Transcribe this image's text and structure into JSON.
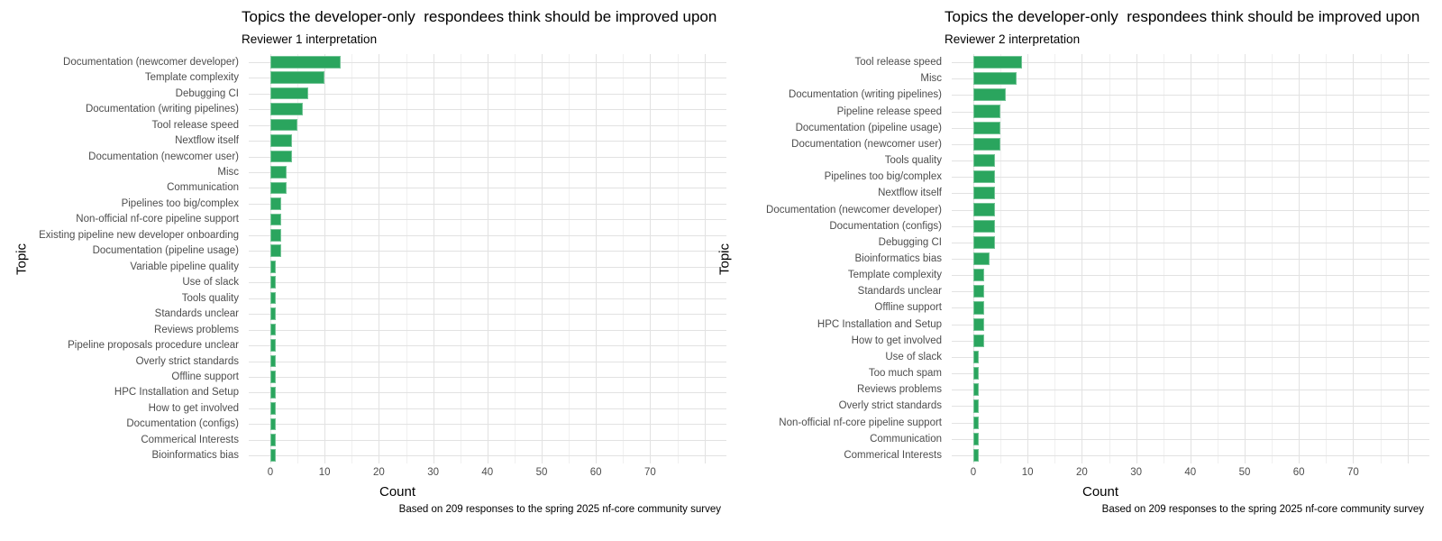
{
  "colors": {
    "bar": "#2aa55e",
    "grid_major": "#e2e2e2",
    "grid_minor": "#f0f0f0",
    "tick_text": "#4d4d4d",
    "text": "#000000"
  },
  "chart_data": [
    {
      "type": "bar",
      "orientation": "horizontal",
      "title": "Topics the developer-only  respondees think should be improved upon",
      "subtitle": "Reviewer 1 interpretation",
      "xlabel": "Count",
      "ylabel": "Topic",
      "caption": "Based on 209 responses to the spring 2025 nf-core community survey",
      "grid": true,
      "legend": "none",
      "xlim": [
        0,
        80
      ],
      "xticks": [
        0,
        10,
        20,
        30,
        40,
        50,
        60,
        70
      ],
      "categories": [
        "Documentation (newcomer developer)",
        "Template complexity",
        "Debugging CI",
        "Documentation (writing pipelines)",
        "Tool release speed",
        "Nextflow itself",
        "Documentation (newcomer user)",
        "Misc",
        "Communication",
        "Pipelines too big/complex",
        "Non-official nf-core pipeline support",
        "Existing pipeline new developer onboarding",
        "Documentation (pipeline usage)",
        "Variable pipeline quality",
        "Use of slack",
        "Tools quality",
        "Standards unclear",
        "Reviews problems",
        "Pipeline proposals procedure unclear",
        "Overly strict standards",
        "Offline support",
        "HPC Installation and Setup",
        "How to get involved",
        "Documentation (configs)",
        "Commerical Interests",
        "Bioinformatics bias"
      ],
      "values": [
        13,
        10,
        7,
        6,
        5,
        4,
        4,
        3,
        3,
        2,
        2,
        2,
        2,
        1,
        1,
        1,
        1,
        1,
        1,
        1,
        1,
        1,
        1,
        1,
        1,
        1
      ]
    },
    {
      "type": "bar",
      "orientation": "horizontal",
      "title": "Topics the developer-only  respondees think should be improved upon",
      "subtitle": "Reviewer 2 interpretation",
      "xlabel": "Count",
      "ylabel": "Topic",
      "caption": "Based on 209 responses to the spring 2025 nf-core community survey",
      "grid": true,
      "legend": "none",
      "xlim": [
        0,
        80
      ],
      "xticks": [
        0,
        10,
        20,
        30,
        40,
        50,
        60,
        70
      ],
      "categories": [
        "Tool release speed",
        "Misc",
        "Documentation (writing pipelines)",
        "Pipeline release speed",
        "Documentation (pipeline usage)",
        "Documentation (newcomer user)",
        "Tools quality",
        "Pipelines too big/complex",
        "Nextflow itself",
        "Documentation (newcomer developer)",
        "Documentation (configs)",
        "Debugging CI",
        "Bioinformatics bias",
        "Template complexity",
        "Standards unclear",
        "Offline support",
        "HPC Installation and Setup",
        "How to get involved",
        "Use of slack",
        "Too much spam",
        "Reviews problems",
        "Overly strict standards",
        "Non-official nf-core pipeline support",
        "Communication",
        "Commerical Interests"
      ],
      "values": [
        9,
        8,
        6,
        5,
        5,
        5,
        4,
        4,
        4,
        4,
        4,
        4,
        3,
        2,
        2,
        2,
        2,
        2,
        1,
        1,
        1,
        1,
        1,
        1,
        1
      ]
    }
  ]
}
